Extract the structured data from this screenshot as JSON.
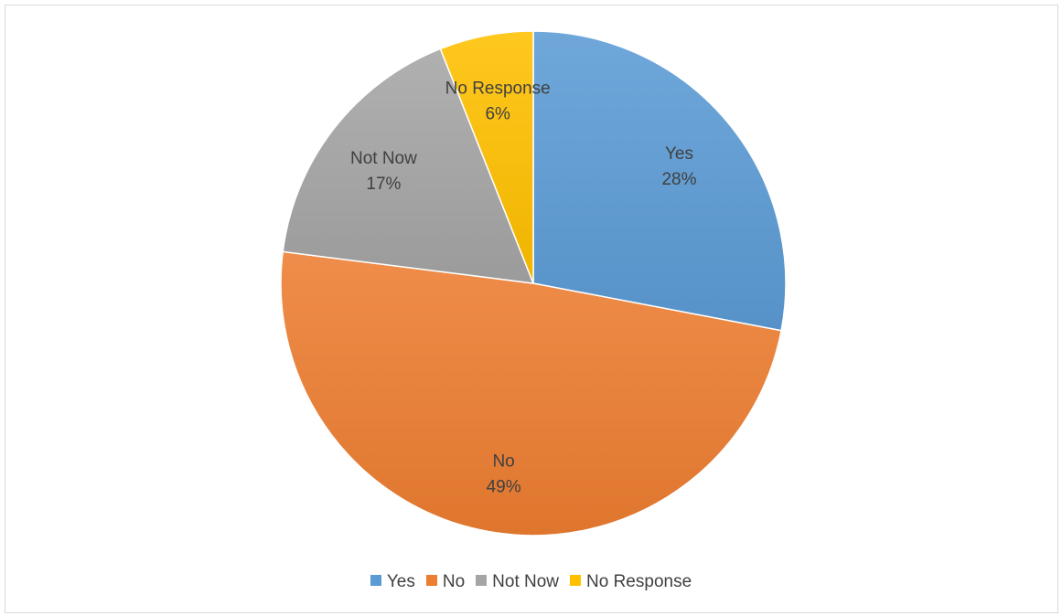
{
  "chart_data": {
    "type": "pie",
    "title": "",
    "categories": [
      "Yes",
      "No",
      "Not Now",
      "No Response"
    ],
    "values": [
      28,
      49,
      17,
      6
    ],
    "value_labels": [
      "28%",
      "49%",
      "17%",
      "6%"
    ],
    "colors": [
      "#5b9bd5",
      "#ed7d31",
      "#a5a5a5",
      "#ffc000"
    ],
    "start_angle": "12 o'clock",
    "direction": "clockwise",
    "legend_position": "bottom"
  }
}
